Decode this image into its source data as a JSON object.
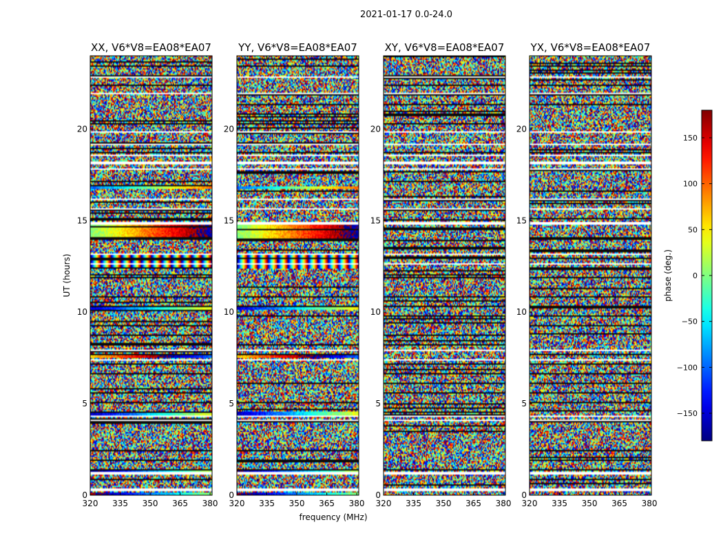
{
  "figure": {
    "title": "2021-01-17 0.0-24.0"
  },
  "chart_data": {
    "type": "heatmap",
    "title": "2021-01-17 0.0-24.0",
    "panels": [
      {
        "title": "XX, V6*V8=EA08*EA07",
        "pol": "XX"
      },
      {
        "title": "YY, V6*V8=EA08*EA07",
        "pol": "YY"
      },
      {
        "title": "XY, V6*V8=EA08*EA07",
        "pol": "XY"
      },
      {
        "title": "YX, V6*V8=EA08*EA07",
        "pol": "YX"
      }
    ],
    "xlabel": "frequency (MHz)",
    "ylabel": "UT (hours)",
    "xlim": [
      320,
      381
    ],
    "ylim": [
      0,
      24
    ],
    "x_ticks": [
      320,
      335,
      350,
      365,
      380
    ],
    "y_ticks": [
      0,
      5,
      10,
      15,
      20
    ],
    "colorbar": {
      "label": "phase (deg.)",
      "range": [
        -180,
        180
      ],
      "ticks": [
        150,
        100,
        50,
        0,
        -50,
        -100,
        -150
      ],
      "tick_labels": [
        "150",
        "100",
        "50",
        "0",
        "−50",
        "−100",
        "−150"
      ],
      "colormap": "jet"
    },
    "flagged_bands_ut": [
      [
        0.2,
        0.35
      ],
      [
        1.15,
        1.25
      ],
      [
        4.05,
        4.15
      ],
      [
        4.3,
        4.38
      ],
      [
        7.35,
        7.45
      ],
      [
        7.85,
        7.95
      ],
      [
        12.6,
        12.7
      ],
      [
        13.1,
        13.2
      ],
      [
        14.8,
        14.9
      ],
      [
        15.6,
        15.7
      ],
      [
        16.1,
        16.2
      ],
      [
        17.8,
        17.85
      ],
      [
        18.1,
        18.2
      ],
      [
        18.5,
        18.6
      ],
      [
        19.1,
        19.2
      ],
      [
        19.8,
        19.85
      ],
      [
        21.9,
        22.0
      ],
      [
        22.8,
        22.9
      ]
    ],
    "coherent_bands_ut": [
      {
        "ut": [
          0.0,
          0.15
        ],
        "pols": [
          "XX",
          "YY"
        ],
        "phase": -130
      },
      {
        "ut": [
          1.3,
          1.45
        ],
        "pols": [
          "XX",
          "YY"
        ],
        "phase": -120
      },
      {
        "ut": [
          4.35,
          4.6
        ],
        "pols": [
          "XX",
          "YY"
        ],
        "phase": -100
      },
      {
        "ut": [
          7.5,
          7.75
        ],
        "pols": [
          "XX",
          "YY"
        ],
        "phase": 120
      },
      {
        "ut": [
          10.1,
          10.3
        ],
        "pols": [
          "XX",
          "YY"
        ],
        "phase": -90
      },
      {
        "ut": [
          12.4,
          13.1
        ],
        "pols": [
          "XX",
          "YY"
        ],
        "phase": 0
      },
      {
        "ut": [
          14.0,
          14.9
        ],
        "pols": [
          "XX",
          "YY"
        ],
        "phase": 60
      },
      {
        "ut": [
          16.7,
          16.9
        ],
        "pols": [
          "XX",
          "YY"
        ],
        "phase": -40
      }
    ]
  }
}
